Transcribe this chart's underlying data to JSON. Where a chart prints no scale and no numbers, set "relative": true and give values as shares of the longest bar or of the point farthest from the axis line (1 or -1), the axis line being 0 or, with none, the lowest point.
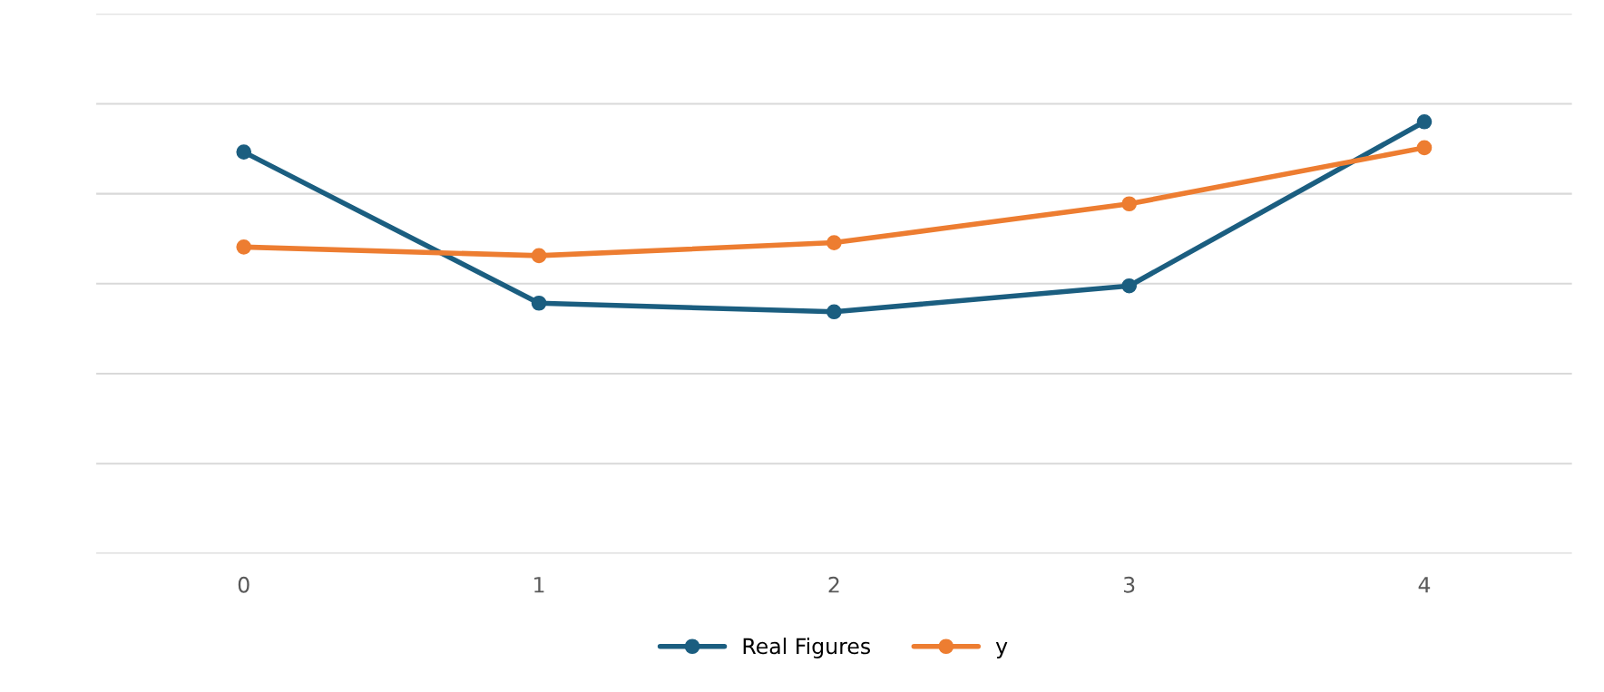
{
  "chart_data": {
    "type": "line",
    "relative": true,
    "categories": [
      "0",
      "1",
      "2",
      "3",
      "4"
    ],
    "series": [
      {
        "name": "Real Figures",
        "color": "#1b5e80",
        "values": [
          0.93,
          0.58,
          0.56,
          0.62,
          1.0
        ]
      },
      {
        "name": "y",
        "color": "#ed7d31",
        "values": [
          0.71,
          0.69,
          0.72,
          0.81,
          0.94
        ]
      }
    ],
    "marker": "circle",
    "line_style": "solid",
    "grid": "y",
    "legend": "bottom",
    "tick_labels": "x"
  }
}
